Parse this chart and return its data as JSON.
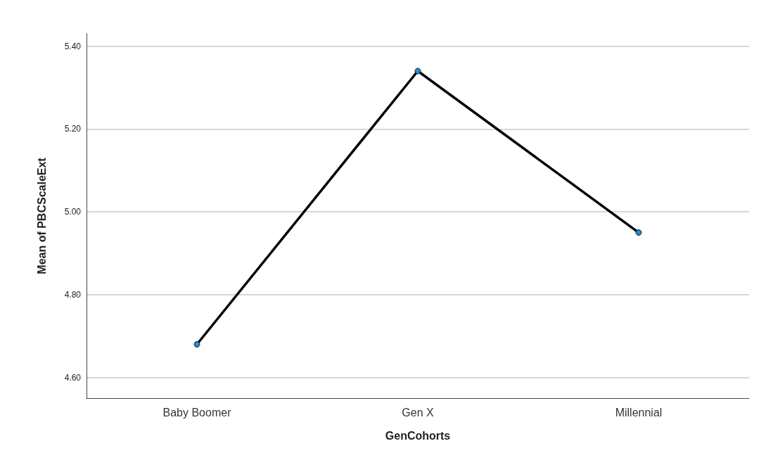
{
  "chart_data": {
    "type": "line",
    "xlabel": "GenCohorts",
    "ylabel": "Mean of PBCScaleExt",
    "categories": [
      "Baby Boomer",
      "Gen X",
      "Millennial"
    ],
    "series": [
      {
        "color": "#1f8dd6",
        "values": [
          4.68,
          5.34,
          4.95
        ]
      }
    ],
    "ylim": [
      4.55,
      5.43
    ],
    "yticks": [
      {
        "value": 4.6,
        "label": "4.60"
      },
      {
        "value": 4.8,
        "label": "4.80"
      },
      {
        "value": 5.0,
        "label": "5.00"
      },
      {
        "value": 5.2,
        "label": "5.20"
      },
      {
        "value": 5.4,
        "label": "5.40"
      }
    ],
    "grid": "y",
    "marker": "circle",
    "line_style": "solid"
  }
}
